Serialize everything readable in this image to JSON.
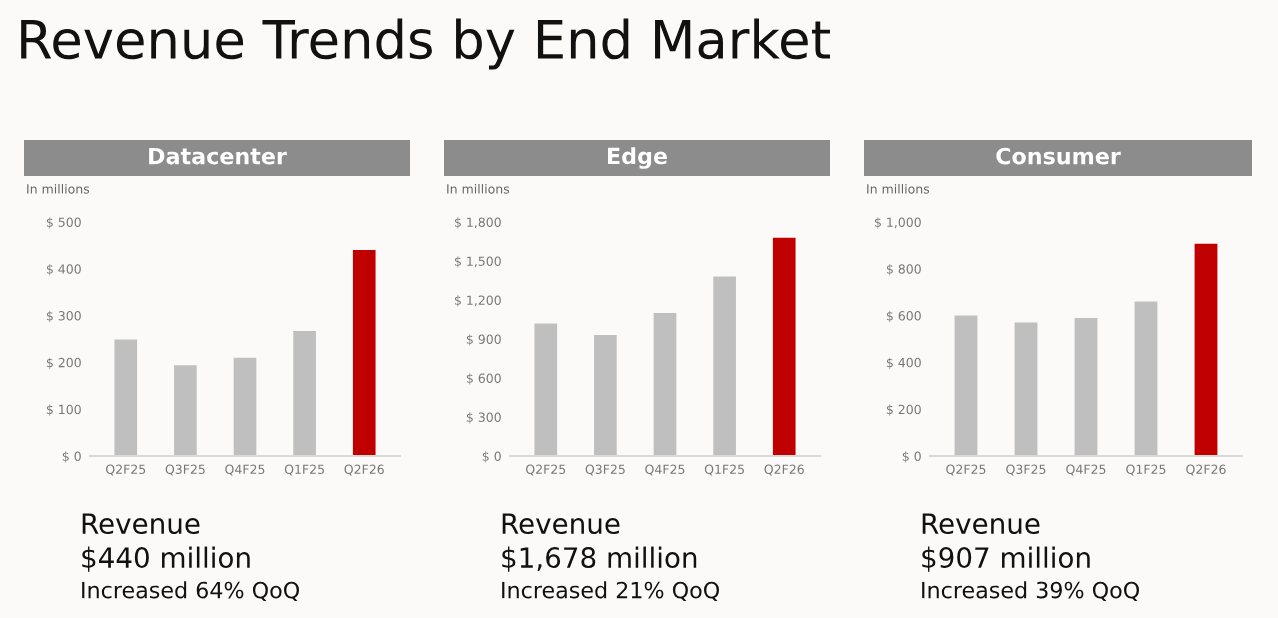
{
  "chart_data": [
    {
      "type": "other",
      "title": "Revenue Trends by End Market"
    },
    {
      "type": "bar",
      "title": "Datacenter",
      "ylabel": "In millions",
      "categories": [
        "Q2F25",
        "Q3F25",
        "Q4F25",
        "Q1F25",
        "Q2F26"
      ],
      "values": [
        249,
        194,
        210,
        267,
        440
      ],
      "colors": [
        "#bfbfbf",
        "#bfbfbf",
        "#bfbfbf",
        "#bfbfbf",
        "#c00000"
      ],
      "ylim": [
        0,
        500
      ],
      "yticks": [
        {
          "value": 0,
          "label": "$ 0"
        },
        {
          "value": 100,
          "label": "$ 100"
        },
        {
          "value": 200,
          "label": "$ 200"
        },
        {
          "value": 300,
          "label": "$ 300"
        },
        {
          "value": 400,
          "label": "$ 400"
        },
        {
          "value": 500,
          "label": "$ 500"
        }
      ],
      "grid": false,
      "annotations": [
        "Revenue",
        "$440 million",
        "Increased 64% QoQ"
      ]
    },
    {
      "type": "bar",
      "title": "Edge",
      "ylabel": "In millions",
      "categories": [
        "Q2F25",
        "Q3F25",
        "Q4F25",
        "Q1F25",
        "Q2F26"
      ],
      "values": [
        1020,
        930,
        1100,
        1380,
        1678
      ],
      "colors": [
        "#bfbfbf",
        "#bfbfbf",
        "#bfbfbf",
        "#bfbfbf",
        "#c00000"
      ],
      "ylim": [
        0,
        1800
      ],
      "yticks": [
        {
          "value": 0,
          "label": "$ 0"
        },
        {
          "value": 300,
          "label": "$ 300"
        },
        {
          "value": 600,
          "label": "$ 600"
        },
        {
          "value": 900,
          "label": "$ 900"
        },
        {
          "value": 1200,
          "label": "$ 1,200"
        },
        {
          "value": 1500,
          "label": "$ 1,500"
        },
        {
          "value": 1800,
          "label": "$ 1,800"
        }
      ],
      "grid": false,
      "annotations": [
        "Revenue",
        "$1,678 million",
        "Increased 21% QoQ"
      ]
    },
    {
      "type": "bar",
      "title": "Consumer",
      "ylabel": "In millions",
      "categories": [
        "Q2F25",
        "Q3F25",
        "Q4F25",
        "Q1F25",
        "Q2F26"
      ],
      "values": [
        600,
        570,
        590,
        660,
        907
      ],
      "colors": [
        "#bfbfbf",
        "#bfbfbf",
        "#bfbfbf",
        "#bfbfbf",
        "#c00000"
      ],
      "ylim": [
        0,
        1000
      ],
      "yticks": [
        {
          "value": 0,
          "label": "$ 0"
        },
        {
          "value": 200,
          "label": "$ 200"
        },
        {
          "value": 400,
          "label": "$ 400"
        },
        {
          "value": 600,
          "label": "$ 600"
        },
        {
          "value": 800,
          "label": "$ 800"
        },
        {
          "value": 1000,
          "label": "$ 1,000"
        }
      ],
      "grid": false,
      "annotations": [
        "Revenue",
        "$907 million",
        "Increased 39% QoQ"
      ]
    }
  ]
}
